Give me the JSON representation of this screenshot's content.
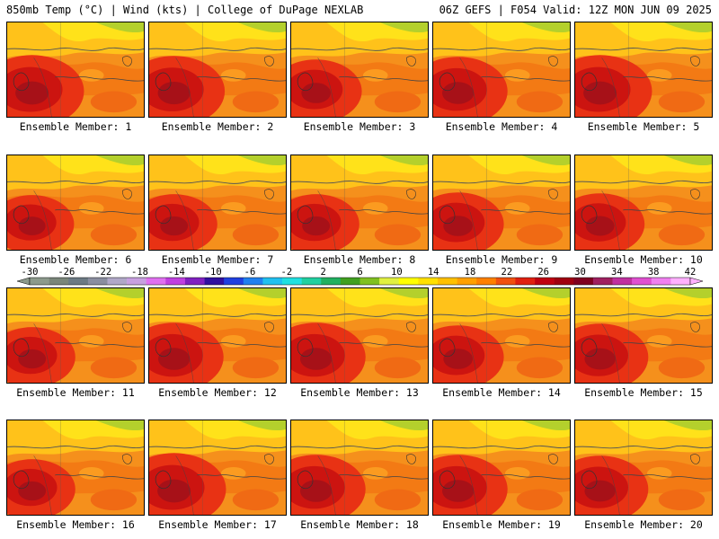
{
  "header": {
    "left": "850mb Temp (°C) | Wind (kts) | College of DuPage NEXLAB",
    "right": "06Z GEFS | F054 Valid: 12Z MON JUN 09 2025"
  },
  "panels": [
    {
      "label": "Ensemble Member: 1",
      "hot_core": 0.95
    },
    {
      "label": "Ensemble Member: 2",
      "hot_core": 0.9
    },
    {
      "label": "Ensemble Member: 3",
      "hot_core": 0.7
    },
    {
      "label": "Ensemble Member: 4",
      "hot_core": 0.85
    },
    {
      "label": "Ensemble Member: 5",
      "hot_core": 0.95
    },
    {
      "label": "Ensemble Member: 6",
      "hot_core": 0.55
    },
    {
      "label": "Ensemble Member: 7",
      "hot_core": 0.6
    },
    {
      "label": "Ensemble Member: 8",
      "hot_core": 0.6
    },
    {
      "label": "Ensemble Member: 9",
      "hot_core": 0.7
    },
    {
      "label": "Ensemble Member: 10",
      "hot_core": 0.65
    },
    {
      "label": "Ensemble Member: 11",
      "hot_core": 0.6
    },
    {
      "label": "Ensemble Member: 12",
      "hot_core": 0.85
    },
    {
      "label": "Ensemble Member: 13",
      "hot_core": 0.85
    },
    {
      "label": "Ensemble Member: 14",
      "hot_core": 0.7
    },
    {
      "label": "Ensemble Member: 15",
      "hot_core": 0.8
    },
    {
      "label": "Ensemble Member: 16",
      "hot_core": 0.6
    },
    {
      "label": "Ensemble Member: 17",
      "hot_core": 0.95
    },
    {
      "label": "Ensemble Member: 18",
      "hot_core": 0.85
    },
    {
      "label": "Ensemble Member: 19",
      "hot_core": 0.85
    },
    {
      "label": "Ensemble Member: 20",
      "hot_core": 0.8
    }
  ],
  "colorbar": {
    "tick_labels": [
      "-30",
      "-26",
      "-22",
      "-18",
      "-14",
      "-10",
      "-6",
      "-2",
      "2",
      "6",
      "10",
      "14",
      "18",
      "22",
      "26",
      "30",
      "34",
      "38",
      "42"
    ],
    "colors": [
      "#8c9a8c",
      "#7a867a",
      "#6c7a84",
      "#8a8ea0",
      "#b0a8c8",
      "#c8a0e0",
      "#e070f0",
      "#c040e0",
      "#8020c0",
      "#3010a0",
      "#2040e0",
      "#2080f0",
      "#20c0f0",
      "#20e0e0",
      "#20d0a0",
      "#20b060",
      "#40a020",
      "#80c020",
      "#e0f040",
      "#ffff00",
      "#ffe000",
      "#ffc000",
      "#ffa000",
      "#ff8000",
      "#f05010",
      "#e02010",
      "#c00010",
      "#a00010",
      "#800020",
      "#a02060",
      "#c030a0",
      "#e050d0",
      "#f080f0",
      "#ffb0ff"
    ]
  }
}
